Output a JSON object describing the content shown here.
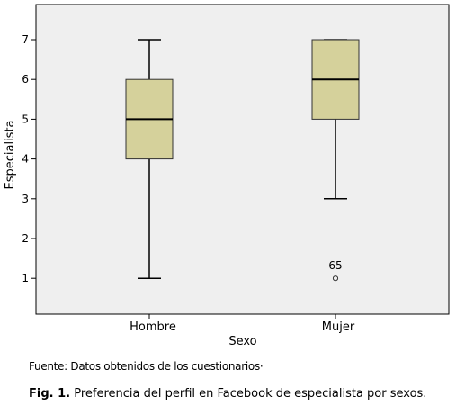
{
  "chart_data": {
    "type": "boxplot",
    "xlabel": "Sexo",
    "ylabel": "Especialista",
    "ylim": [
      0.25,
      8.05
    ],
    "yticks": [
      1,
      2,
      3,
      4,
      5,
      6,
      7
    ],
    "categories": [
      "Hombre",
      "Mujer"
    ],
    "boxes": [
      {
        "category": "Hombre",
        "whisker_low": 1,
        "q1": 4,
        "median": 5,
        "q3": 6,
        "whisker_high": 7,
        "outliers": []
      },
      {
        "category": "Mujer",
        "whisker_low": 3,
        "q1": 5,
        "median": 6,
        "q3": 7,
        "whisker_high": 7,
        "outliers": [
          {
            "value": 1,
            "label": "65"
          }
        ]
      }
    ],
    "colors": {
      "plot_bg": "#efefef",
      "box_fill": "#d5d19b",
      "frame": "#000000"
    }
  },
  "source_note": "Fuente: Datos obtenidos de los cuestionarios·",
  "caption": {
    "label": "Fig. 1.",
    "text": "Preferencia del perfil en Facebook de especialista por sexos."
  }
}
